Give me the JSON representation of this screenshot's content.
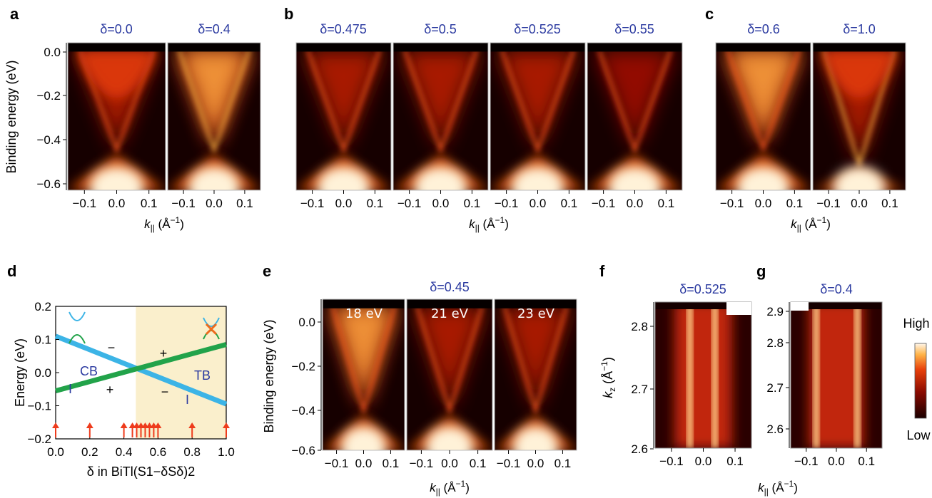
{
  "panel_labels": {
    "a": "a",
    "b": "b",
    "c": "c",
    "d": "d",
    "e": "e",
    "f": "f",
    "g": "g"
  },
  "panel_a": {
    "titles": [
      "δ=0.0",
      "δ=0.4"
    ],
    "ylabel": "Binding energy (eV)",
    "yticks": [
      "0.0",
      "−0.2",
      "−0.4",
      "−0.6"
    ],
    "xlabel": "k|| (Å−1)"
  },
  "panel_b": {
    "titles": [
      "δ=0.475",
      "δ=0.5",
      "δ=0.525",
      "δ=0.55"
    ]
  },
  "panel_c": {
    "titles": [
      "δ=0.6",
      "δ=1.0"
    ],
    "xlabel": "k|| (Å−1)"
  },
  "panel_e": {
    "title": "δ=0.45",
    "ylabel": "Binding energy (eV)",
    "yticks": [
      "0.0",
      "−0.2",
      "−0.4",
      "−0.6"
    ],
    "photon_energies": [
      "18 eV",
      "21 eV",
      "23 eV"
    ],
    "xlabel": "k|| (Å−1)"
  },
  "panel_f": {
    "title": "δ=0.525",
    "ylabel": "kz (Å−1)",
    "yticks": [
      "2.8",
      "2.7",
      "2.6"
    ]
  },
  "panel_g": {
    "title": "δ=0.4",
    "yticks": [
      "2.9",
      "2.8",
      "2.7",
      "2.6"
    ],
    "xlabel": "k|| (Å−1)"
  },
  "colorbar": {
    "high": "High",
    "low": "Low"
  },
  "k_ticks": [
    "−0.1",
    "0.0",
    "0.1"
  ],
  "panel_d_text": {
    "cb": "CB",
    "tb": "TB",
    "gamma": "I",
    "plus": "+",
    "minus": "−",
    "ytick_labels": [
      "0.2",
      "0.1",
      "0.0",
      "−0.1",
      "−0.2"
    ],
    "xtick_labels": [
      "0.0",
      "0.2",
      "0.4",
      "0.6",
      "0.8",
      "1.0"
    ]
  },
  "chart_data": {
    "type": "line",
    "title": "",
    "xlabel": "δ in BiTl(S1−δSδ)2",
    "ylabel": "Energy (eV)",
    "xlim": [
      0.0,
      1.0
    ],
    "ylim": [
      -0.2,
      0.2
    ],
    "series": [
      {
        "name": "CB",
        "color": "#3cb4e6",
        "x": [
          0.0,
          1.0
        ],
        "y": [
          0.11,
          -0.095
        ]
      },
      {
        "name": "TB",
        "color": "#22a34a",
        "x": [
          0.0,
          1.0
        ],
        "y": [
          -0.055,
          0.085
        ]
      }
    ],
    "topological_region": {
      "from": 0.47,
      "to": 1.0,
      "color": "#faefcc"
    },
    "sample_markers": {
      "color": "#ee3b1c",
      "x": [
        0.0,
        0.2,
        0.4,
        0.45,
        0.475,
        0.5,
        0.525,
        0.55,
        0.575,
        0.6,
        0.8,
        1.0
      ]
    }
  }
}
